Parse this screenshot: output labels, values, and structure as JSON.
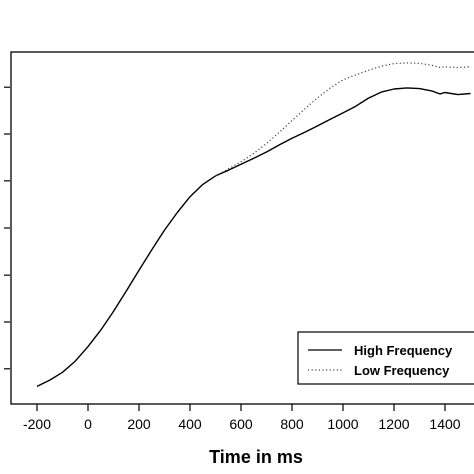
{
  "chart_data": {
    "type": "line",
    "title": "",
    "xlabel": "Time in ms",
    "ylabel": "",
    "xlim": [
      -250,
      1500
    ],
    "x_ticks": [
      -200,
      0,
      200,
      400,
      600,
      800,
      1000,
      1200,
      1400
    ],
    "x_tick_labels": [
      "-200",
      "0",
      "200",
      "400",
      "600",
      "800",
      "1000",
      "1200",
      "1400"
    ],
    "ylim": [
      0.0,
      1.0
    ],
    "y_ticks": [
      0.1,
      0.233,
      0.366,
      0.5,
      0.634,
      0.767,
      0.9
    ],
    "grid": false,
    "legend_position": "bottom-right",
    "series": [
      {
        "name": "High Frequency",
        "style": "solid",
        "color": "#000000",
        "x": [
          -200,
          -150,
          -100,
          -50,
          0,
          50,
          100,
          150,
          200,
          250,
          300,
          350,
          400,
          450,
          500,
          550,
          600,
          650,
          700,
          750,
          800,
          850,
          900,
          950,
          1000,
          1050,
          1100,
          1150,
          1200,
          1250,
          1300,
          1350,
          1380,
          1400,
          1450,
          1500
        ],
        "y": [
          0.05,
          0.068,
          0.09,
          0.122,
          0.163,
          0.21,
          0.263,
          0.321,
          0.38,
          0.438,
          0.494,
          0.544,
          0.589,
          0.624,
          0.648,
          0.664,
          0.681,
          0.698,
          0.716,
          0.736,
          0.755,
          0.772,
          0.79,
          0.809,
          0.827,
          0.846,
          0.869,
          0.886,
          0.895,
          0.898,
          0.896,
          0.889,
          0.881,
          0.885,
          0.879,
          0.882
        ]
      },
      {
        "name": "Low Frequency",
        "style": "dotted",
        "color": "#444444",
        "x": [
          500,
          550,
          600,
          650,
          700,
          750,
          800,
          850,
          900,
          950,
          1000,
          1050,
          1100,
          1150,
          1200,
          1250,
          1300,
          1350,
          1380,
          1400,
          1450,
          1500
        ],
        "y": [
          0.648,
          0.668,
          0.688,
          0.712,
          0.74,
          0.772,
          0.805,
          0.838,
          0.87,
          0.898,
          0.921,
          0.935,
          0.948,
          0.96,
          0.967,
          0.969,
          0.968,
          0.962,
          0.956,
          0.958,
          0.956,
          0.958
        ]
      }
    ]
  }
}
